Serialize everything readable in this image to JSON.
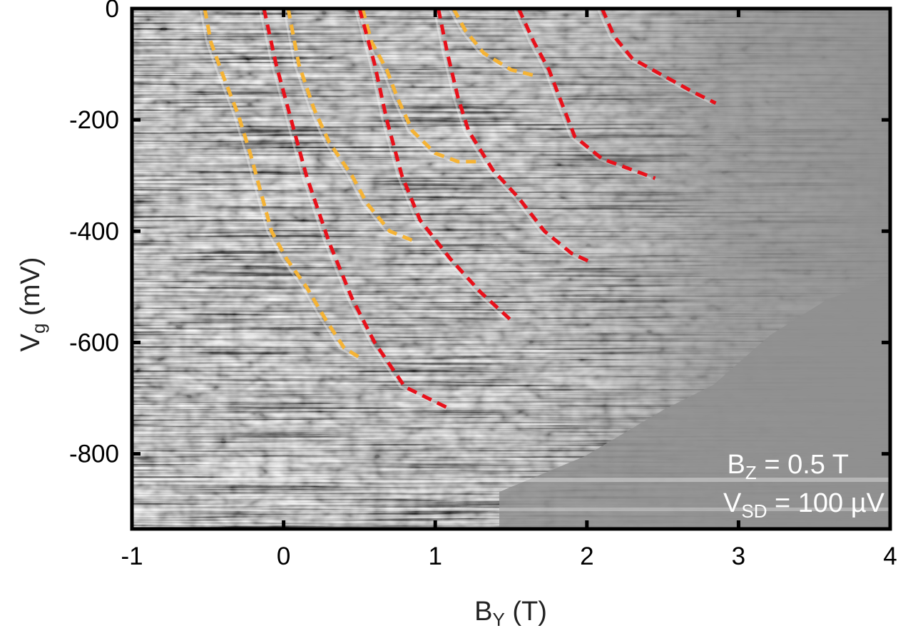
{
  "chart_data": {
    "type": "heatmap",
    "title": "",
    "xlabel": {
      "main": "B",
      "sub": "Y",
      "unit": " (T)"
    },
    "ylabel": {
      "main": "V",
      "sub": "g",
      "unit": " (mV)"
    },
    "xlim": [
      -1,
      4
    ],
    "ylim": [
      -935,
      0
    ],
    "xticks": [
      -1,
      0,
      1,
      2,
      3,
      4
    ],
    "yticks": [
      0,
      -200,
      -400,
      -600,
      -800
    ],
    "grid": false,
    "colormap": "grayscale",
    "annotations": [
      {
        "main": "B",
        "sub": "Z",
        "rest": " = 0.5 T"
      },
      {
        "main": "V",
        "sub": "SD",
        "rest": " = 100 µV"
      }
    ],
    "colors": {
      "orange": "#f5b335",
      "red": "#e8101a",
      "background": "#8e8e8e"
    },
    "series": [
      {
        "color": "orange",
        "points": [
          [
            -0.52,
            0
          ],
          [
            -0.48,
            -60
          ],
          [
            -0.4,
            -120
          ],
          [
            -0.3,
            -190
          ],
          [
            -0.22,
            -260
          ],
          [
            -0.15,
            -330
          ],
          [
            -0.08,
            -400
          ],
          [
            0.02,
            -450
          ],
          [
            0.15,
            -500
          ],
          [
            0.28,
            -560
          ],
          [
            0.4,
            -610
          ],
          [
            0.52,
            -630
          ]
        ]
      },
      {
        "color": "red",
        "points": [
          [
            -0.13,
            0
          ],
          [
            -0.05,
            -100
          ],
          [
            0.05,
            -200
          ],
          [
            0.15,
            -300
          ],
          [
            0.3,
            -420
          ],
          [
            0.45,
            -520
          ],
          [
            0.6,
            -600
          ],
          [
            0.8,
            -680
          ],
          [
            1.1,
            -720
          ]
        ]
      },
      {
        "color": "orange",
        "points": [
          [
            0.03,
            0
          ],
          [
            0.1,
            -100
          ],
          [
            0.2,
            -180
          ],
          [
            0.3,
            -240
          ],
          [
            0.45,
            -300
          ],
          [
            0.55,
            -350
          ],
          [
            0.7,
            -400
          ],
          [
            0.88,
            -420
          ]
        ]
      },
      {
        "color": "orange",
        "points": [
          [
            0.52,
            0
          ],
          [
            0.58,
            -60
          ],
          [
            0.68,
            -110
          ],
          [
            0.75,
            -160
          ],
          [
            0.85,
            -220
          ],
          [
            1.0,
            -260
          ],
          [
            1.15,
            -275
          ],
          [
            1.3,
            -275
          ]
        ]
      },
      {
        "color": "red",
        "points": [
          [
            0.5,
            0
          ],
          [
            0.6,
            -100
          ],
          [
            0.68,
            -200
          ],
          [
            0.78,
            -300
          ],
          [
            0.9,
            -380
          ],
          [
            1.1,
            -450
          ],
          [
            1.3,
            -510
          ],
          [
            1.5,
            -560
          ]
        ]
      },
      {
        "color": "orange",
        "points": [
          [
            1.12,
            0
          ],
          [
            1.2,
            -40
          ],
          [
            1.32,
            -80
          ],
          [
            1.5,
            -110
          ],
          [
            1.65,
            -120
          ]
        ]
      },
      {
        "color": "red",
        "points": [
          [
            1.02,
            0
          ],
          [
            1.08,
            -80
          ],
          [
            1.15,
            -160
          ],
          [
            1.22,
            -220
          ],
          [
            1.38,
            -290
          ],
          [
            1.55,
            -340
          ],
          [
            1.72,
            -400
          ],
          [
            1.9,
            -440
          ],
          [
            2.02,
            -455
          ]
        ]
      },
      {
        "color": "red",
        "points": [
          [
            1.55,
            0
          ],
          [
            1.65,
            -60
          ],
          [
            1.75,
            -110
          ],
          [
            1.82,
            -160
          ],
          [
            1.92,
            -230
          ],
          [
            2.1,
            -270
          ],
          [
            2.3,
            -290
          ],
          [
            2.45,
            -305
          ]
        ]
      },
      {
        "color": "red",
        "points": [
          [
            2.1,
            0
          ],
          [
            2.18,
            -50
          ],
          [
            2.3,
            -90
          ],
          [
            2.5,
            -120
          ],
          [
            2.7,
            -150
          ],
          [
            2.85,
            -170
          ]
        ]
      }
    ]
  }
}
